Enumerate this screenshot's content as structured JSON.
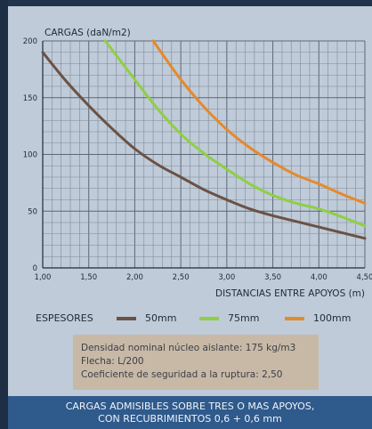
{
  "chart_data": {
    "type": "line",
    "title": "CARGAS (daN/m2)",
    "xlabel": "DISTANCIAS ENTRE APOYOS (m)",
    "ylabel": "",
    "xlim": [
      1.0,
      4.5
    ],
    "ylim": [
      0,
      200
    ],
    "x_ticks": [
      "1,00",
      "1,50",
      "2,00",
      "2,50",
      "3,00",
      "3,50",
      "4,00",
      "4,50"
    ],
    "y_ticks": [
      "0",
      "50",
      "100",
      "150",
      "200"
    ],
    "grid": true,
    "legend_position": "bottom",
    "series": [
      {
        "name": "50mm",
        "color": "#6b5245",
        "x": [
          1.0,
          1.25,
          1.5,
          1.75,
          2.0,
          2.25,
          2.5,
          2.75,
          3.0,
          3.25,
          3.5,
          3.75,
          4.0,
          4.25,
          4.5
        ],
        "values": [
          190,
          165,
          143,
          123,
          105,
          91,
          80,
          69,
          60,
          52,
          46,
          41,
          36,
          31,
          26
        ]
      },
      {
        "name": "75mm",
        "color": "#8fcf45",
        "x": [
          1.68,
          2.0,
          2.25,
          2.5,
          2.75,
          3.0,
          3.25,
          3.5,
          3.75,
          4.0,
          4.25,
          4.5
        ],
        "values": [
          200,
          166,
          140,
          118,
          101,
          87,
          74,
          64,
          57,
          52,
          45,
          37
        ]
      },
      {
        "name": "100mm",
        "color": "#e5892d",
        "x": [
          2.2,
          2.5,
          2.75,
          3.0,
          3.25,
          3.5,
          3.75,
          4.0,
          4.25,
          4.5
        ],
        "values": [
          200,
          166,
          142,
          122,
          106,
          93,
          82,
          74,
          65,
          57
        ]
      }
    ]
  },
  "legend": {
    "title": "ESPESORES",
    "items": [
      {
        "label": "50mm",
        "color": "#6b5245"
      },
      {
        "label": "75mm",
        "color": "#8fcf45"
      },
      {
        "label": "100mm",
        "color": "#e5892d"
      }
    ]
  },
  "info": {
    "line1": "Densidad nominal núcleo aislante: 175 kg/m3",
    "line2": "Flecha: L/200",
    "line3": "Coeficiente de seguridad a la ruptura: 2,50"
  },
  "footer": {
    "line1": "CARGAS ADMISIBLES SOBRE TRES O MAS APOYOS,",
    "line2": "CON RECUBRIMIENTOS 0,6 + 0,6 mm"
  }
}
